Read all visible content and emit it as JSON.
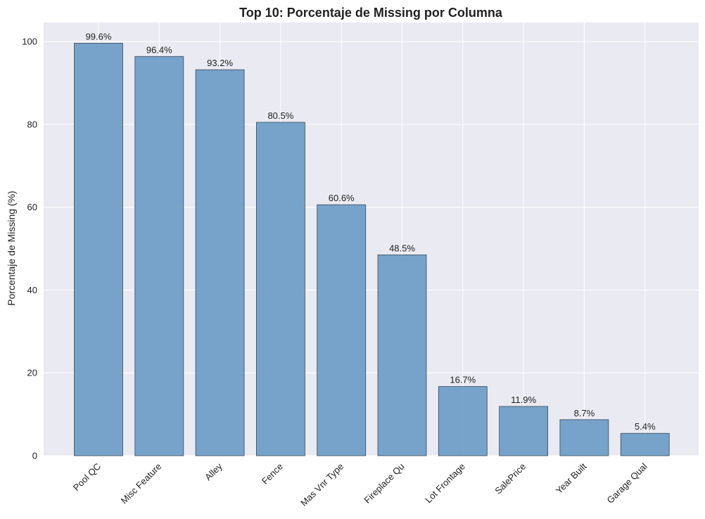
{
  "chart_data": {
    "type": "bar",
    "title": "Top 10: Porcentaje de Missing por Columna",
    "xlabel": "",
    "ylabel": "Porcentaje de Missing (%)",
    "categories": [
      "Pool QC",
      "Misc Feature",
      "Alley",
      "Fence",
      "Mas Vnr Type",
      "Fireplace Qu",
      "Lot Frontage",
      "SalePrice",
      "Year Built",
      "Garage Qual"
    ],
    "values": [
      99.6,
      96.4,
      93.2,
      80.5,
      60.6,
      48.5,
      16.7,
      11.9,
      8.7,
      5.4
    ],
    "data_labels": [
      "99.6%",
      "96.4%",
      "93.2%",
      "80.5%",
      "60.6%",
      "48.5%",
      "16.7%",
      "11.9%",
      "8.7%",
      "5.4%"
    ],
    "yticks": [
      0,
      20,
      40,
      60,
      80,
      100
    ],
    "ylim": [
      0,
      104.6
    ],
    "grid": true,
    "colors": {
      "background": "#eaeaf2",
      "bar_fill": "#6a9ac4",
      "bar_edge": "#3a4a5c",
      "grid": "#ffffff"
    }
  }
}
